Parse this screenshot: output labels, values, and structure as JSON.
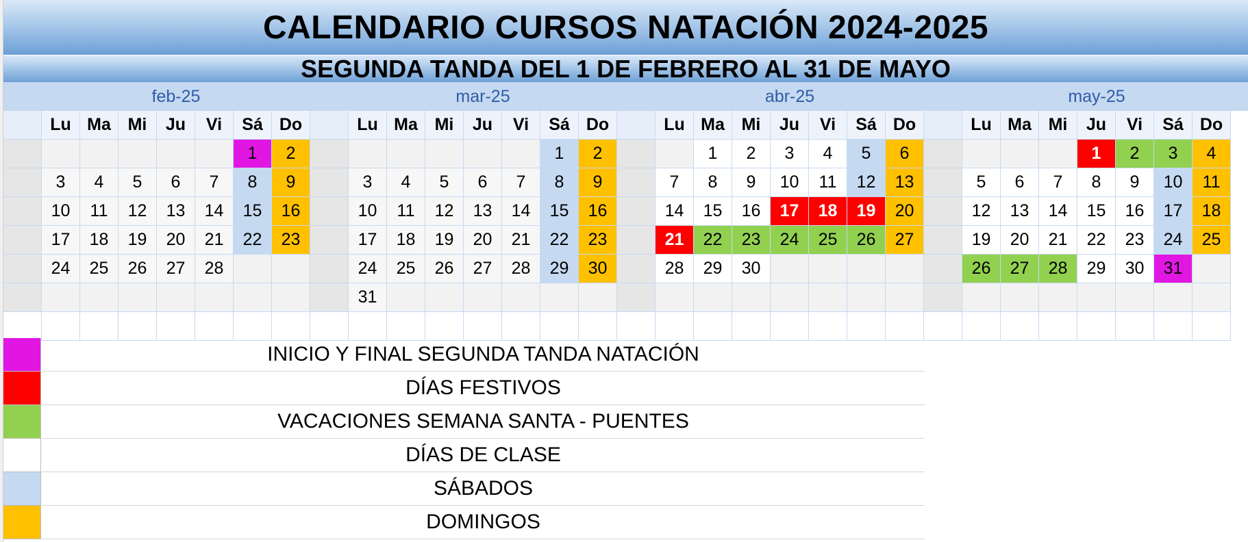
{
  "title": "CALENDARIO CURSOS NATACIÓN  2024-2025",
  "subtitle": "SEGUNDA TANDA DEL 1 DE FEBRERO AL 31 DE MAYO",
  "weekdays": [
    "Lu",
    "Ma",
    "Mi",
    "Ju",
    "Vi",
    "Sá",
    "Do"
  ],
  "colors": {
    "inicio_final": "#e216e2",
    "festivo": "#ff0000",
    "vacaciones": "#92d050",
    "clase": "#ffffff",
    "sabado": "#c5d9f1",
    "domingo": "#ffc000",
    "empty": "#f2f2f2",
    "gutter": "#e6e6e6"
  },
  "months": [
    {
      "label": "feb-25",
      "weeks": [
        [
          null,
          null,
          null,
          null,
          null,
          1,
          2
        ],
        [
          3,
          4,
          5,
          6,
          7,
          8,
          9
        ],
        [
          10,
          11,
          12,
          13,
          14,
          15,
          16
        ],
        [
          17,
          18,
          19,
          20,
          21,
          22,
          23
        ],
        [
          24,
          25,
          26,
          27,
          28,
          null,
          null
        ],
        [
          null,
          null,
          null,
          null,
          null,
          null,
          null
        ]
      ],
      "highlights": {
        "1": "inicio_final"
      }
    },
    {
      "label": "mar-25",
      "weeks": [
        [
          null,
          null,
          null,
          null,
          null,
          1,
          2
        ],
        [
          3,
          4,
          5,
          6,
          7,
          8,
          9
        ],
        [
          10,
          11,
          12,
          13,
          14,
          15,
          16
        ],
        [
          17,
          18,
          19,
          20,
          21,
          22,
          23
        ],
        [
          24,
          25,
          26,
          27,
          28,
          29,
          30
        ],
        [
          31,
          null,
          null,
          null,
          null,
          null,
          null
        ]
      ],
      "highlights": {}
    },
    {
      "label": "abr-25",
      "weeks": [
        [
          null,
          1,
          2,
          3,
          4,
          5,
          6
        ],
        [
          7,
          8,
          9,
          10,
          11,
          12,
          13
        ],
        [
          14,
          15,
          16,
          17,
          18,
          19,
          20
        ],
        [
          21,
          22,
          23,
          24,
          25,
          26,
          27
        ],
        [
          28,
          29,
          30,
          null,
          null,
          null,
          null
        ],
        [
          null,
          null,
          null,
          null,
          null,
          null,
          null
        ]
      ],
      "highlights": {
        "17": "festivo",
        "18": "festivo",
        "19": "festivo",
        "21": "festivo",
        "22": "vacaciones",
        "23": "vacaciones",
        "24": "vacaciones",
        "25": "vacaciones",
        "26": "vacaciones"
      }
    },
    {
      "label": "may-25",
      "weeks": [
        [
          null,
          null,
          null,
          1,
          2,
          3,
          4
        ],
        [
          5,
          6,
          7,
          8,
          9,
          10,
          11
        ],
        [
          12,
          13,
          14,
          15,
          16,
          17,
          18
        ],
        [
          19,
          20,
          21,
          22,
          23,
          24,
          25
        ],
        [
          26,
          27,
          28,
          29,
          30,
          31,
          null
        ],
        [
          null,
          null,
          null,
          null,
          null,
          null,
          null
        ]
      ],
      "highlights": {
        "1": "festivo",
        "2": "vacaciones",
        "3": "vacaciones",
        "26": "vacaciones",
        "27": "vacaciones",
        "28": "vacaciones",
        "31": "inicio_final"
      }
    }
  ],
  "legend": [
    {
      "color_key": "inicio_final",
      "label": "INICIO Y FINAL SEGUNDA TANDA NATACIÓN"
    },
    {
      "color_key": "festivo",
      "label": "DÍAS FESTIVOS"
    },
    {
      "color_key": "vacaciones",
      "label": "VACACIONES SEMANA SANTA - PUENTES"
    },
    {
      "color_key": "clase",
      "label": "DÍAS DE CLASE"
    },
    {
      "color_key": "sabado",
      "label": "SÁBADOS"
    },
    {
      "color_key": "domingo",
      "label": "DOMINGOS"
    }
  ]
}
